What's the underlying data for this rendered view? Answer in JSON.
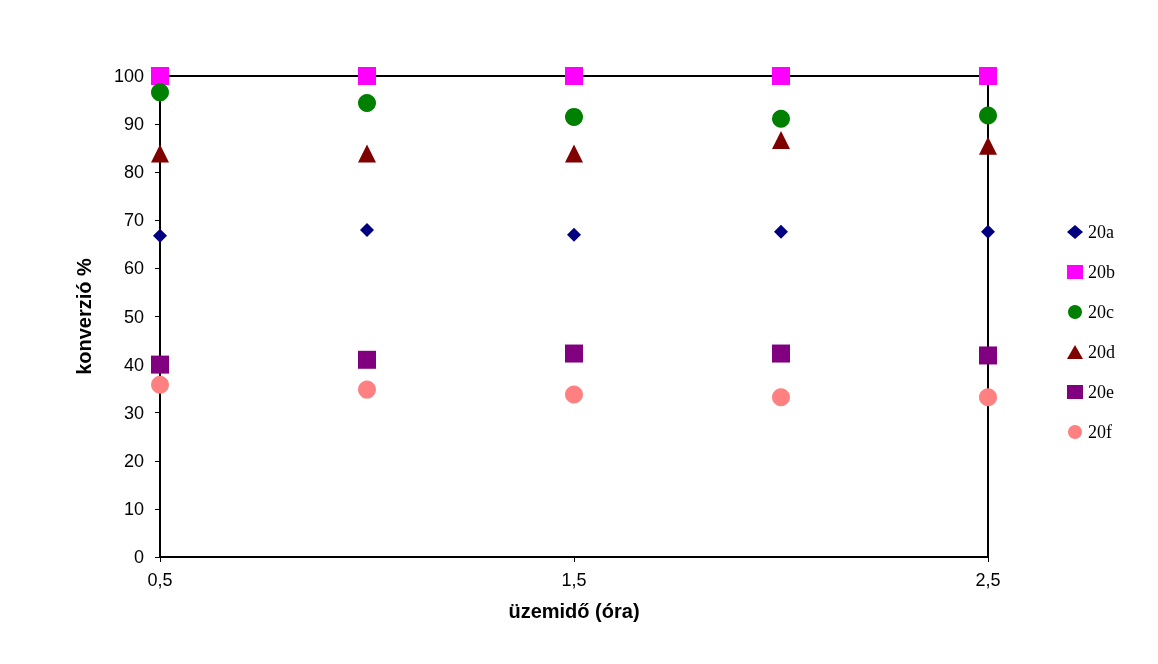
{
  "chart_data": {
    "type": "scatter",
    "xlabel": "üzemidő (óra)",
    "ylabel": "konverzió %",
    "x": [
      0.5,
      1,
      1.5,
      2,
      2.5
    ],
    "series": [
      {
        "name": "20a",
        "color": "#000080",
        "marker": "diamond",
        "values": [
          66.8,
          68.0,
          67.0,
          67.6,
          67.6
        ]
      },
      {
        "name": "20b",
        "color": "#ff00ff",
        "marker": "square",
        "values": [
          100,
          100,
          100,
          100,
          100
        ]
      },
      {
        "name": "20c",
        "color": "#008000",
        "marker": "circle",
        "values": [
          96.6,
          94.4,
          91.5,
          91.1,
          91.8
        ]
      },
      {
        "name": "20d",
        "color": "#800000",
        "marker": "triangle",
        "values": [
          83.9,
          83.9,
          83.9,
          86.7,
          85.5
        ]
      },
      {
        "name": "20e",
        "color": "#800080",
        "marker": "square",
        "values": [
          40.0,
          41.0,
          42.3,
          42.3,
          41.9
        ]
      },
      {
        "name": "20f",
        "color": "#ff8080",
        "marker": "circle",
        "values": [
          35.8,
          34.8,
          33.8,
          33.2,
          33.2
        ]
      }
    ],
    "xlim": [
      0.5,
      2.5
    ],
    "xticks": [
      {
        "value": 0.5,
        "label": "0,5"
      },
      {
        "value": 1.5,
        "label": "1,5"
      },
      {
        "value": 2.5,
        "label": "2,5"
      }
    ],
    "ylim": [
      0,
      100
    ],
    "yticks": [
      0,
      10,
      20,
      30,
      40,
      50,
      60,
      70,
      80,
      90,
      100
    ],
    "grid": false,
    "legend": "right"
  }
}
